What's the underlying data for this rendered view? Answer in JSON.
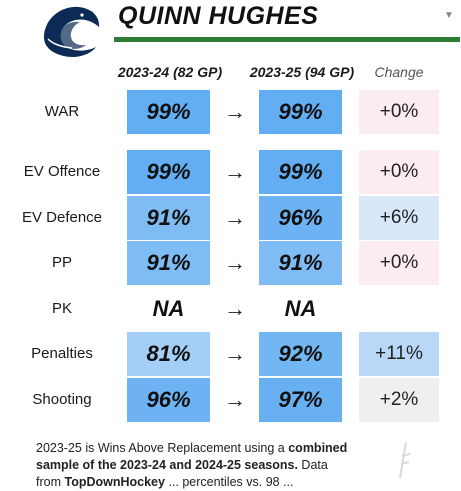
{
  "header": {
    "title": "QUINN HUGHES"
  },
  "columns": {
    "season1": "2023-24 (82 GP)",
    "season2": "2023-25 (94 GP)",
    "change": "Change"
  },
  "arrow": "→",
  "rows": [
    {
      "label": "WAR",
      "v1": "99%",
      "v2": "99%",
      "change": "+0%",
      "v1_color": "#63adf2",
      "v2_color": "#63adf2",
      "chg_color": "#fbecef"
    },
    {
      "label": "EV Offence",
      "v1": "99%",
      "v2": "99%",
      "change": "+0%",
      "v1_color": "#63adf2",
      "v2_color": "#63adf2",
      "chg_color": "#fbecef"
    },
    {
      "label": "EV Defence",
      "v1": "91%",
      "v2": "96%",
      "change": "+6%",
      "v1_color": "#7fbcf3",
      "v2_color": "#6db2f2",
      "chg_color": "#d8e7f8"
    },
    {
      "label": "PP",
      "v1": "91%",
      "v2": "91%",
      "change": "+0%",
      "v1_color": "#7fbcf3",
      "v2_color": "#7fbcf3",
      "chg_color": "#fbecef"
    },
    {
      "label": "PK",
      "v1": "NA",
      "v2": "NA",
      "change": "",
      "v1_color": "#ffffff",
      "v2_color": "#ffffff",
      "chg_color": "#ffffff"
    },
    {
      "label": "Penalties",
      "v1": "81%",
      "v2": "92%",
      "change": "+11%",
      "v1_color": "#a3cff6",
      "v2_color": "#72b6f2",
      "chg_color": "#b9d8f7"
    },
    {
      "label": "Shooting",
      "v1": "96%",
      "v2": "97%",
      "change": "+2%",
      "v1_color": "#6db2f2",
      "v2_color": "#69b0f2",
      "chg_color": "#efeff2"
    }
  ],
  "footer": {
    "line1_pre": "2023-25 is Wins Above Replacement using a ",
    "line1_bold": "combined",
    "line2_bold": "sample of the 2023-24 and 2024-25 seasons.",
    "line2_post": " Data",
    "line3_pre": "from ",
    "line3_bold": "TopDownHockey",
    "line3_post": " ... percentiles vs. 98 ..."
  }
}
